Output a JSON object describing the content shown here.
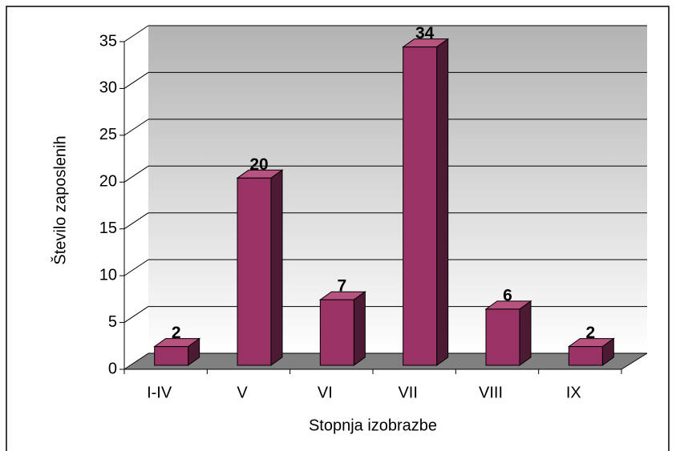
{
  "chart_data": {
    "type": "bar",
    "x_label": "Stopnja izobrazbe",
    "y_label": "Število zaposlenih",
    "categories": [
      "I-IV",
      "V",
      "VI",
      "VII",
      "VIII",
      "IX"
    ],
    "values": [
      2,
      20,
      7,
      34,
      6,
      2
    ],
    "color": "#993366",
    "ylim": [
      0,
      35
    ],
    "yticks": [
      0,
      5,
      10,
      15,
      20,
      25,
      30,
      35
    ],
    "grid": true
  }
}
